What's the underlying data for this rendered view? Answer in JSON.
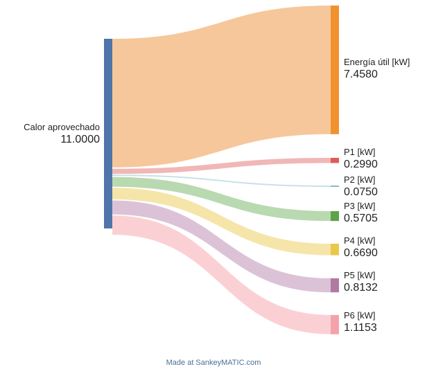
{
  "diagram": {
    "type": "sankey",
    "source": {
      "name": "Calor aprovechado",
      "value_label": "11.0000",
      "value": 11.0,
      "color": "#4f75a9"
    },
    "targets": [
      {
        "name": "Energía útil [kW]",
        "value_label": "7.4580",
        "value": 7.458,
        "color": "#f0922e",
        "flow_color": "#f6c79b"
      },
      {
        "name": "P1 [kW]",
        "value_label": "0.2990",
        "value": 0.299,
        "color": "#de5b59",
        "flow_color": "#f0b7b6"
      },
      {
        "name": "P2 [kW]",
        "value_label": "0.0750",
        "value": 0.075,
        "color": "#7fb6c5",
        "flow_color": "#c5dfe6"
      },
      {
        "name": "P3 [kW]",
        "value_label": "0.5705",
        "value": 0.5705,
        "color": "#5ea24a",
        "flow_color": "#b9d9b1"
      },
      {
        "name": "P4 [kW]",
        "value_label": "0.6690",
        "value": 0.669,
        "color": "#e9c84b",
        "flow_color": "#f5e5a8"
      },
      {
        "name": "P5 [kW]",
        "value_label": "0.8132",
        "value": 0.8132,
        "color": "#b07aa3",
        "flow_color": "#dcc2d7"
      },
      {
        "name": "P6 [kW]",
        "value_label": "1.1153",
        "value": 1.1153,
        "color": "#f4a2aa",
        "flow_color": "#fbd0d4"
      }
    ]
  },
  "footer": {
    "text": "Made at SankeyMATIC.com"
  }
}
